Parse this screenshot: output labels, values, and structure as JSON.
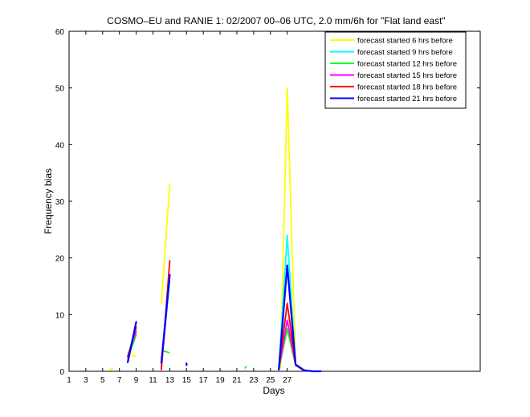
{
  "chart_data": {
    "type": "line",
    "title": "COSMO–EU and RANIE 1: 02/2007 00–06 UTC, 2.0 mm/6h for \"Flat land east\"",
    "xlabel": "Days",
    "ylabel": "Frequency bias",
    "xlim": [
      1,
      50
    ],
    "ylim": [
      0,
      60
    ],
    "xticks": [
      1,
      3,
      5,
      7,
      9,
      11,
      13,
      15,
      17,
      19,
      21,
      23,
      25,
      27
    ],
    "xtick_labels": [
      "1",
      "3",
      "5",
      "7",
      "9",
      "11",
      "13",
      "15",
      "17",
      "19",
      "21",
      "23",
      "25",
      "27"
    ],
    "yticks": [
      0,
      10,
      20,
      30,
      40,
      50,
      60
    ],
    "ytick_labels": [
      "0",
      "10",
      "20",
      "30",
      "40",
      "50",
      "60"
    ],
    "grid": false,
    "legend_position": "top-right",
    "series": [
      {
        "name": "forecast started 6 hrs before",
        "color": "#ffff00",
        "segments": [
          [
            [
              5.8,
              0.3
            ],
            [
              6.2,
              0.5
            ]
          ],
          [
            [
              8,
              2.8
            ],
            [
              9,
              2.7
            ]
          ],
          [
            [
              12,
              12
            ],
            [
              13,
              33
            ]
          ],
          [
            [
              26,
              0.3
            ],
            [
              26.2,
              0.6
            ],
            [
              27,
              50
            ],
            [
              28,
              1.2
            ],
            [
              29,
              0.1
            ]
          ]
        ]
      },
      {
        "name": "forecast started 9 hrs before",
        "color": "#00ffff",
        "segments": [
          [
            [
              8,
              2.5
            ],
            [
              9,
              7.5
            ]
          ],
          [
            [
              12,
              1
            ],
            [
              13,
              16
            ]
          ],
          [
            [
              26,
              0.4
            ],
            [
              27,
              24
            ],
            [
              28,
              1.1
            ],
            [
              29,
              0.1
            ]
          ]
        ]
      },
      {
        "name": "forecast started 12 hrs before",
        "color": "#00ff00",
        "segments": [
          [
            [
              8,
              2.2
            ],
            [
              9,
              6.5
            ]
          ],
          [
            [
              12.3,
              3.6
            ],
            [
              12.9,
              3.3
            ]
          ],
          [
            [
              22,
              0.6
            ],
            [
              22.1,
              0.8
            ]
          ],
          [
            [
              26,
              0.3
            ],
            [
              27,
              7.5
            ],
            [
              28,
              1.1
            ],
            [
              29,
              0.1
            ]
          ]
        ]
      },
      {
        "name": "forecast started 15 hrs before",
        "color": "#ff00ff",
        "segments": [
          [
            [
              8,
              2.7
            ],
            [
              9,
              7
            ]
          ],
          [
            [
              12,
              0.5
            ],
            [
              13,
              17
            ]
          ],
          [
            [
              26,
              0.3
            ],
            [
              27,
              9
            ],
            [
              28,
              1.1
            ],
            [
              29,
              0.1
            ]
          ]
        ]
      },
      {
        "name": "forecast started 18 hrs before",
        "color": "#ff0000",
        "segments": [
          [
            [
              8,
              2.6
            ],
            [
              9,
              7.8
            ]
          ],
          [
            [
              12,
              0.3
            ],
            [
              13,
              19.5
            ]
          ],
          [
            [
              26,
              0.3
            ],
            [
              27,
              12
            ],
            [
              28,
              1.1
            ],
            [
              29,
              0.1
            ]
          ]
        ]
      },
      {
        "name": "forecast started 21 hrs before",
        "color": "#0000ff",
        "segments": [
          [
            [
              8,
              1.6
            ],
            [
              9,
              8.7
            ]
          ],
          [
            [
              12,
              1.5
            ],
            [
              13,
              17
            ]
          ],
          [
            [
              15,
              1.1
            ],
            [
              15,
              1.4
            ]
          ],
          [
            [
              26,
              0.3
            ],
            [
              27,
              18.7
            ],
            [
              28,
              1.2
            ],
            [
              29,
              0.2
            ],
            [
              30,
              0
            ],
            [
              31,
              0
            ]
          ]
        ]
      }
    ]
  }
}
